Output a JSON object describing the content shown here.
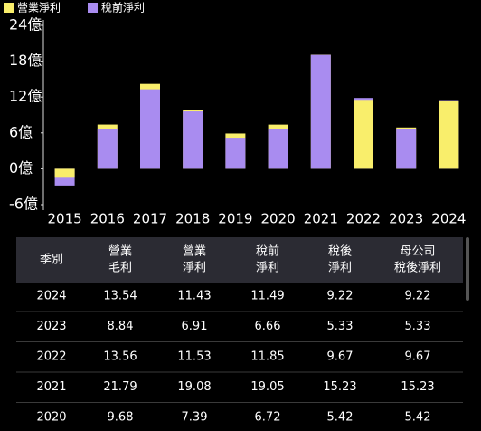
{
  "chart_data": {
    "type": "bar",
    "legend_position": "top-left",
    "grid": false,
    "categories": [
      "2015",
      "2016",
      "2017",
      "2018",
      "2019",
      "2020",
      "2021",
      "2022",
      "2023",
      "2024"
    ],
    "series": [
      {
        "name": "營業淨利",
        "color": "#f9ee6b",
        "values": [
          -1.5,
          7.4,
          14.2,
          9.9,
          5.9,
          7.39,
          19.08,
          11.53,
          6.91,
          11.43
        ]
      },
      {
        "name": "稅前淨利",
        "color": "#a98cf0",
        "values": [
          -2.8,
          6.6,
          13.3,
          9.6,
          5.2,
          6.72,
          19.05,
          11.85,
          6.66,
          11.49
        ]
      }
    ],
    "ylim": [
      -6,
      24
    ],
    "yticks": [
      {
        "value": -6,
        "label": "-6億"
      },
      {
        "value": 0,
        "label": "0億"
      },
      {
        "value": 6,
        "label": "6億"
      },
      {
        "value": 12,
        "label": "12億"
      },
      {
        "value": 18,
        "label": "18億"
      },
      {
        "value": 24,
        "label": "24億"
      }
    ]
  },
  "table": {
    "header": [
      [
        "季別"
      ],
      [
        "營業",
        "毛利"
      ],
      [
        "營業",
        "淨利"
      ],
      [
        "稅前",
        "淨利"
      ],
      [
        "稅後",
        "淨利"
      ],
      [
        "母公司",
        "稅後淨利"
      ]
    ],
    "rows": [
      [
        "2024",
        "13.54",
        "11.43",
        "11.49",
        "9.22",
        "9.22"
      ],
      [
        "2023",
        "8.84",
        "6.91",
        "6.66",
        "5.33",
        "5.33"
      ],
      [
        "2022",
        "13.56",
        "11.53",
        "11.85",
        "9.67",
        "9.67"
      ],
      [
        "2021",
        "21.79",
        "19.08",
        "19.05",
        "15.23",
        "15.23"
      ],
      [
        "2020",
        "9.68",
        "7.39",
        "6.72",
        "5.42",
        "5.42"
      ]
    ]
  }
}
